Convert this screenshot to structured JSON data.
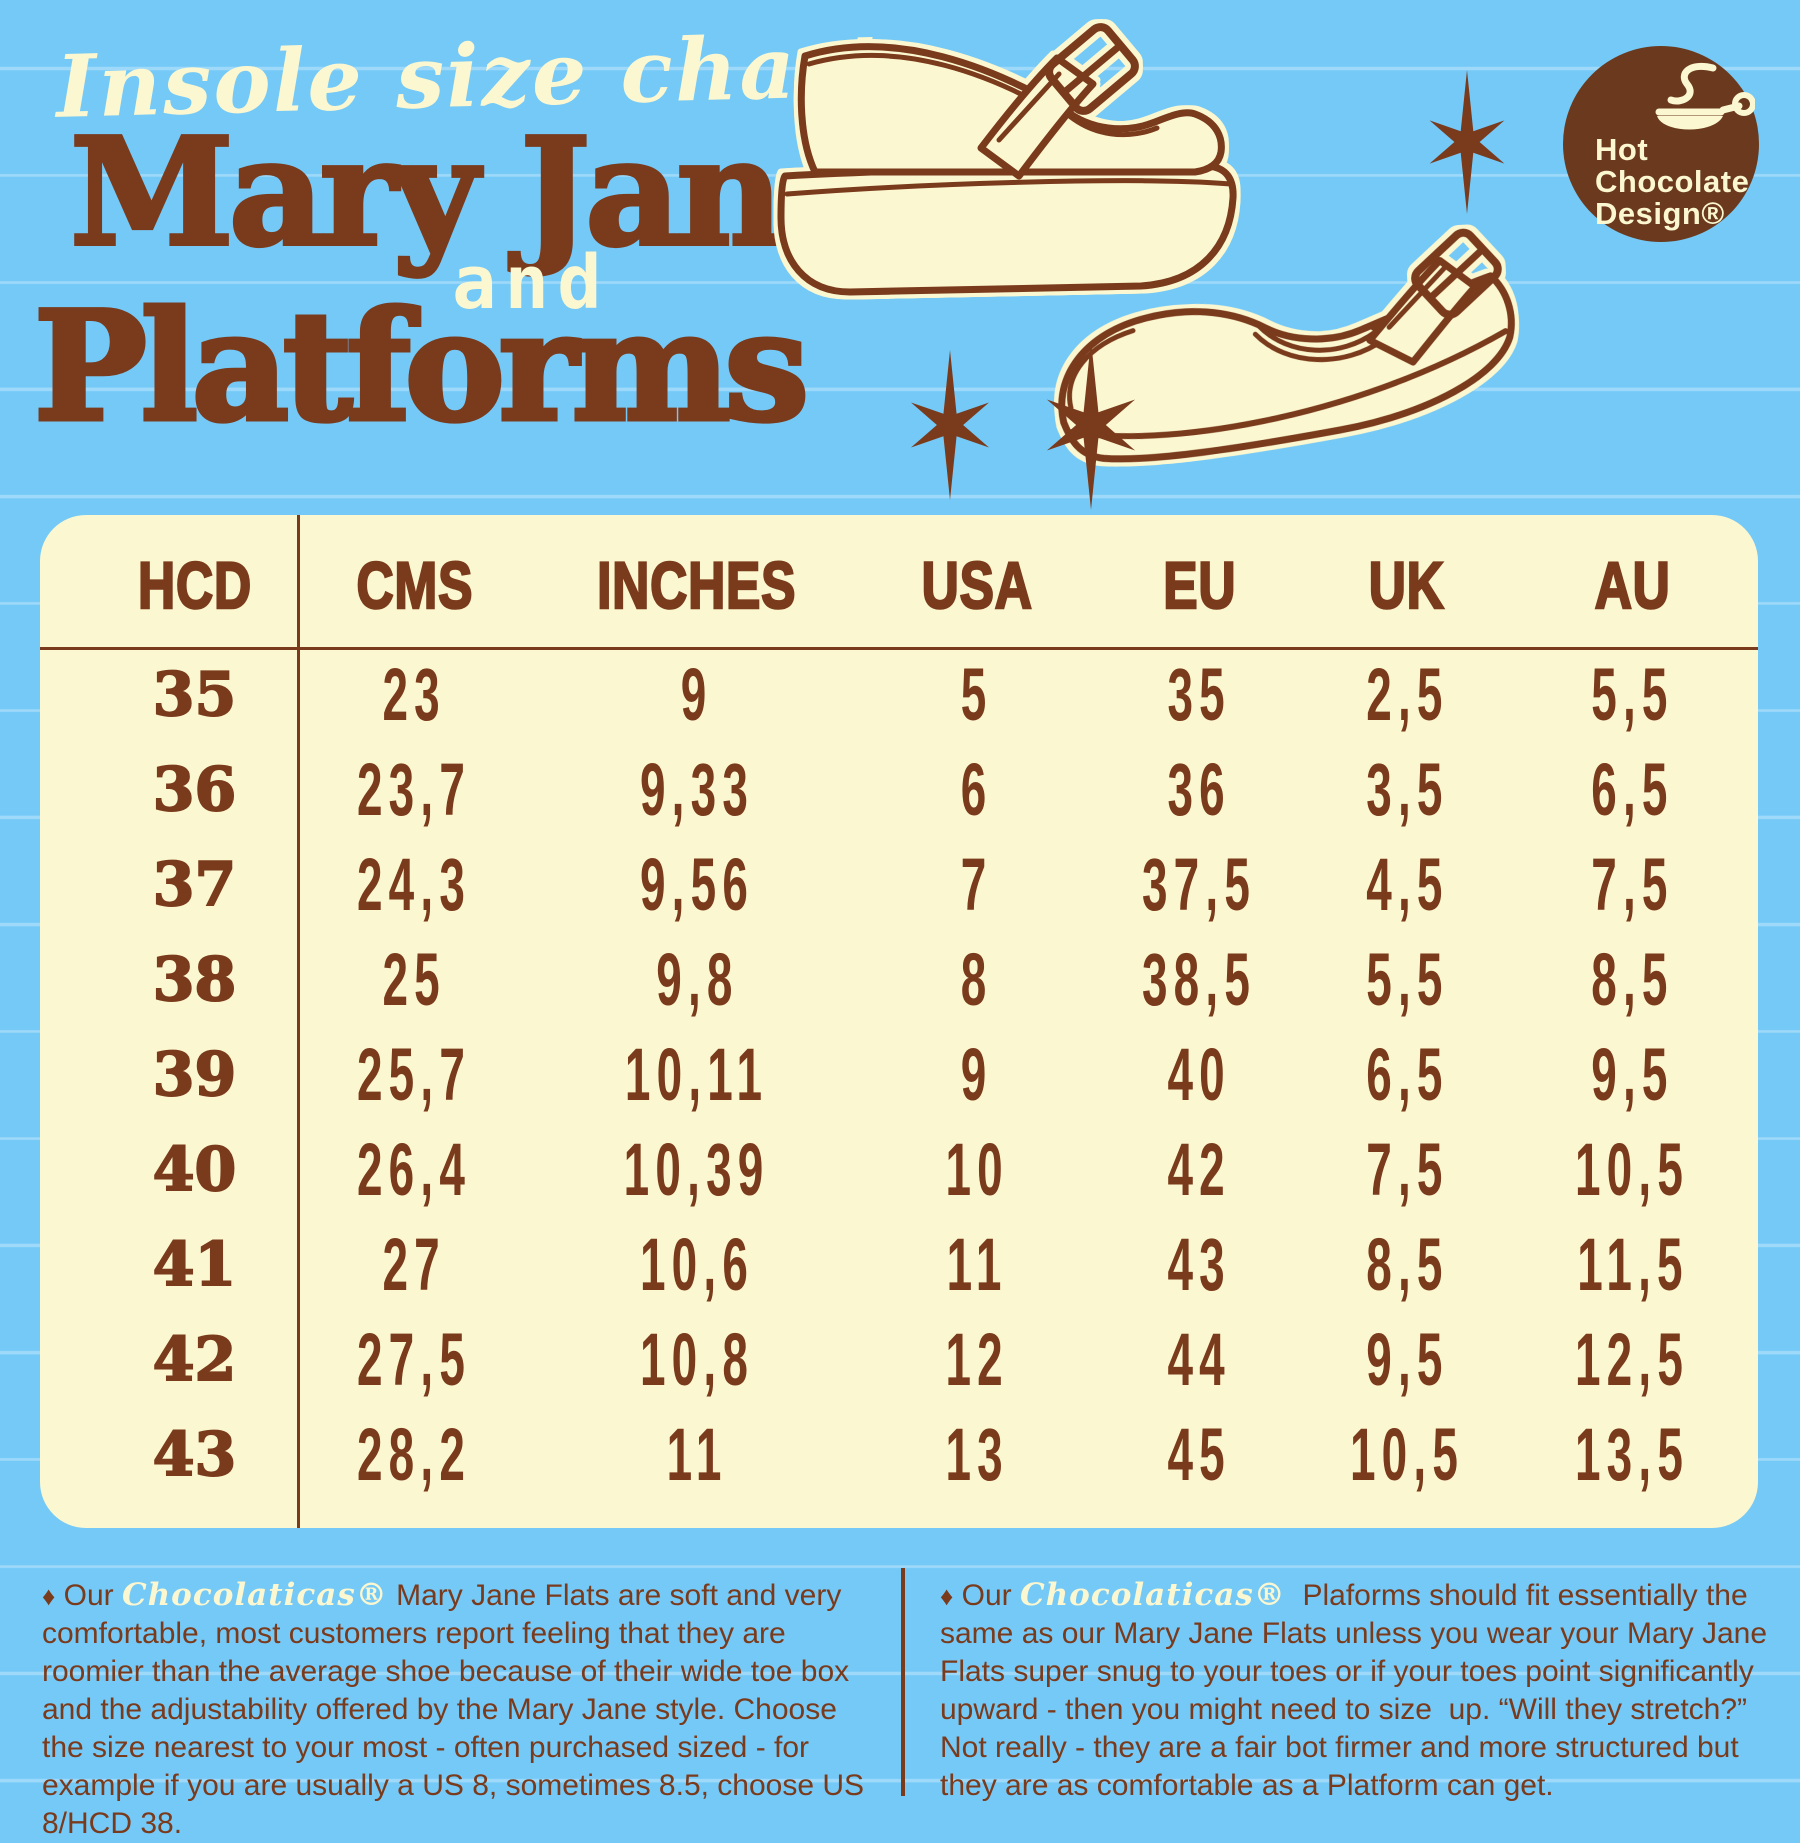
{
  "header": {
    "subtitle": "Insole size chart",
    "title_line1": "Mary Jane",
    "title_and": "and",
    "title_line2": "Platforms"
  },
  "logo": {
    "line1": "Hot",
    "line2": "Chocolate",
    "line3": "Design®"
  },
  "icons": {
    "star-icon": "six-point starburst ✶",
    "cup-icon": "steaming hot chocolate cup with spoon",
    "platform-shoe-illustration": "mary jane platform shoe outline",
    "flat-shoe-illustration": "mary jane flat shoe outline",
    "diamond-bullet": "♦"
  },
  "colors": {
    "background_blue": "#74C9F7",
    "ruled_line_blue": "#A9DEFB",
    "cream": "#FBF7D0",
    "brown": "#7A3A1C",
    "logo_brown": "#6B3A1E"
  },
  "chart_data": {
    "type": "table",
    "title": "Insole size chart — Mary Jane and Platforms",
    "columns": [
      "HCD",
      "CMS",
      "INCHES",
      "USA",
      "EU",
      "UK",
      "AU"
    ],
    "rows": [
      [
        "35",
        "23",
        "9",
        "5",
        "35",
        "2,5",
        "5,5"
      ],
      [
        "36",
        "23,7",
        "9,33",
        "6",
        "36",
        "3,5",
        "6,5"
      ],
      [
        "37",
        "24,3",
        "9,56",
        "7",
        "37,5",
        "4,5",
        "7,5"
      ],
      [
        "38",
        "25",
        "9,8",
        "8",
        "38,5",
        "5,5",
        "8,5"
      ],
      [
        "39",
        "25,7",
        "10,11",
        "9",
        "40",
        "6,5",
        "9,5"
      ],
      [
        "40",
        "26,4",
        "10,39",
        "10",
        "42",
        "7,5",
        "10,5"
      ],
      [
        "41",
        "27",
        "10,6",
        "11",
        "43",
        "8,5",
        "11,5"
      ],
      [
        "42",
        "27,5",
        "10,8",
        "12",
        "44",
        "9,5",
        "12,5"
      ],
      [
        "43",
        "28,2",
        "11",
        "13",
        "45",
        "10,5",
        "13,5"
      ]
    ]
  },
  "notes": {
    "left": {
      "bullet": "♦",
      "prefix": " Our ",
      "brand": "Chocolaticas®",
      "text": " Mary Jane Flats are soft and very comfortable, most customers report feeling that they are roomier than the average shoe because of their wide toe box and the adjustability offered by the Mary Jane style. Choose the size nearest to your most - often purchased sized - for example if you are usually a US 8, sometimes 8.5, choose US 8/HCD 38."
    },
    "right": {
      "bullet": "♦",
      "prefix": " Our ",
      "brand": "Chocolaticas®",
      "text": "  Plaforms should fit essentially the same as our Mary Jane Flats unless you wear your Mary Jane Flats super snug to your toes or if your toes point significantly upward - then you might need to size  up. “Will they stretch?” Not really - they are a fair bot firmer and more structured but they are as comfortable as a Platform can get."
    }
  }
}
